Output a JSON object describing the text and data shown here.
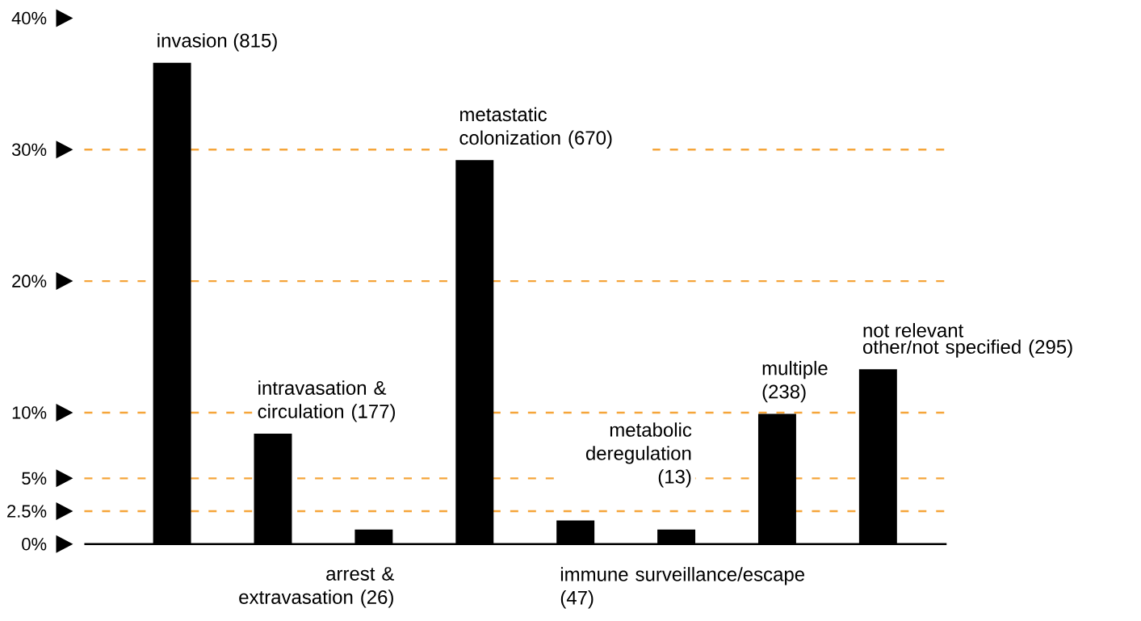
{
  "chart_data": {
    "type": "bar",
    "categories": [
      null,
      null,
      null,
      null,
      null,
      null,
      null,
      null
    ],
    "values": [
      36.6,
      8.4,
      1.1,
      29.2,
      1.8,
      1.1,
      9.9,
      13.3
    ],
    "color": "#000000",
    "ylim": [
      0,
      40
    ],
    "yticks": [
      {
        "value": 0,
        "label": "0%"
      },
      {
        "value": 2.5,
        "label": "2.5%"
      },
      {
        "value": 5,
        "label": "5%"
      },
      {
        "value": 10,
        "label": "10%"
      },
      {
        "value": 20,
        "label": "20%"
      },
      {
        "value": 30,
        "label": "30%"
      },
      {
        "value": 40,
        "label": "40%"
      }
    ],
    "grid": "y",
    "annotations": [
      "invasion (815)",
      "intravasation & circulation (177)",
      "arrest & extravasation (26)",
      "metastatic colonization (670)",
      "immune surveillance/escape (47)",
      "metabolic deregulation (13)",
      "multiple (238)",
      "other/not specified (295)",
      "not relevant"
    ]
  }
}
